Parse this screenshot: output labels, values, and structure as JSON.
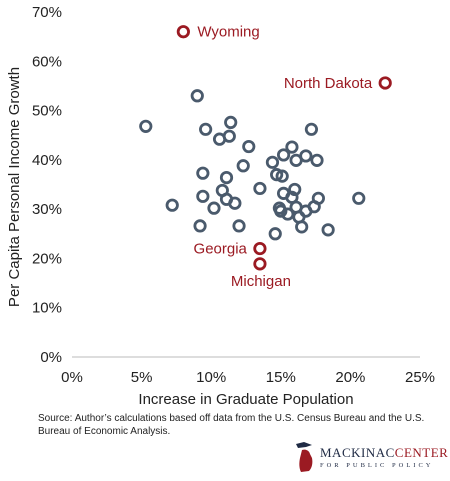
{
  "chart_data": {
    "type": "scatter",
    "title": "",
    "xlabel": "Increase in Graduate Population",
    "ylabel": "Per Capita Personal Income Growth",
    "xlim": [
      0,
      25
    ],
    "ylim": [
      0,
      70
    ],
    "xticks": [
      "0%",
      "5%",
      "10%",
      "15%",
      "20%",
      "25%"
    ],
    "yticks": [
      "0%",
      "10%",
      "20%",
      "30%",
      "40%",
      "50%",
      "60%",
      "70%"
    ],
    "grid": false,
    "colors": {
      "default": "#4a5a6c",
      "highlight": "#9b1a22"
    },
    "points": [
      {
        "x": 5.3,
        "y": 46.8
      },
      {
        "x": 7.2,
        "y": 30.8
      },
      {
        "x": 9.0,
        "y": 53.0
      },
      {
        "x": 9.2,
        "y": 26.6
      },
      {
        "x": 9.4,
        "y": 32.6
      },
      {
        "x": 9.4,
        "y": 37.3
      },
      {
        "x": 9.6,
        "y": 46.2
      },
      {
        "x": 10.2,
        "y": 30.2
      },
      {
        "x": 10.6,
        "y": 44.2
      },
      {
        "x": 10.8,
        "y": 33.8
      },
      {
        "x": 11.1,
        "y": 36.4
      },
      {
        "x": 11.1,
        "y": 32.0
      },
      {
        "x": 11.3,
        "y": 44.8
      },
      {
        "x": 11.4,
        "y": 47.6
      },
      {
        "x": 11.7,
        "y": 31.2
      },
      {
        "x": 12.0,
        "y": 26.6
      },
      {
        "x": 12.3,
        "y": 38.8
      },
      {
        "x": 12.7,
        "y": 42.7
      },
      {
        "x": 13.5,
        "y": 34.2
      },
      {
        "x": 14.4,
        "y": 39.5
      },
      {
        "x": 14.6,
        "y": 25.0
      },
      {
        "x": 14.7,
        "y": 37.0
      },
      {
        "x": 14.9,
        "y": 30.2
      },
      {
        "x": 15.0,
        "y": 29.6
      },
      {
        "x": 15.1,
        "y": 36.7
      },
      {
        "x": 15.2,
        "y": 33.2
      },
      {
        "x": 15.2,
        "y": 41.0
      },
      {
        "x": 15.5,
        "y": 29.0
      },
      {
        "x": 15.8,
        "y": 42.6
      },
      {
        "x": 15.8,
        "y": 32.4
      },
      {
        "x": 16.0,
        "y": 34.0
      },
      {
        "x": 16.1,
        "y": 30.4
      },
      {
        "x": 16.1,
        "y": 39.9
      },
      {
        "x": 16.3,
        "y": 28.4
      },
      {
        "x": 16.5,
        "y": 26.4
      },
      {
        "x": 16.8,
        "y": 29.6
      },
      {
        "x": 16.8,
        "y": 40.8
      },
      {
        "x": 17.2,
        "y": 46.2
      },
      {
        "x": 17.6,
        "y": 39.9
      },
      {
        "x": 17.7,
        "y": 32.2
      },
      {
        "x": 18.4,
        "y": 25.8
      },
      {
        "x": 20.6,
        "y": 32.2
      },
      {
        "x": 17.4,
        "y": 30.5
      }
    ],
    "highlighted": [
      {
        "x": 8.0,
        "y": 66.0,
        "label": "Wyoming",
        "label_side": "right"
      },
      {
        "x": 22.5,
        "y": 55.6,
        "label": "North Dakota",
        "label_side": "left"
      },
      {
        "x": 13.5,
        "y": 22.0,
        "label": "Georgia",
        "label_side": "left"
      },
      {
        "x": 13.5,
        "y": 18.9,
        "label": "Michigan",
        "label_side": "below"
      }
    ]
  },
  "source_note": "Source: Author’s calculations based off data from the U.S. Census Bureau and the U.S. Bureau of Economic Analysis.",
  "logo": {
    "name_left": "MACKINAC",
    "name_right": "CENTER",
    "tagline": "FOR PUBLIC POLICY"
  }
}
